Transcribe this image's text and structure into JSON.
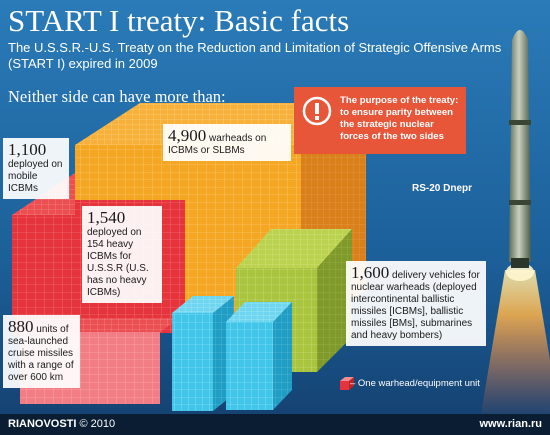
{
  "header": {
    "title": "START I treaty: Basic facts",
    "subtitle": "The U.S.S.R.-U.S. Treaty on the Reduction and Limitation of Strategic Offensive Arms (START I) expired in 2009",
    "lead": "Neither side can have more than:"
  },
  "callouts": {
    "mobile_icbms": {
      "value": "1,100",
      "text": "deployed on mobile ICBMs"
    },
    "warheads": {
      "value": "4,900",
      "text": "warheads on ICBMs or SLBMs"
    },
    "heavy_icbms": {
      "value": "1,540",
      "text": "deployed on 154 heavy ICBMs for U.S.S.R (U.S. has no heavy ICBMs)"
    },
    "delivery_vehicles": {
      "value": "1,600",
      "text": "delivery vehicles for nuclear warheads (deployed intercontinental ballistic missiles [ICBMs], ballistic missiles [BMs], submarines and heavy bombers)"
    },
    "cruise_missiles": {
      "value": "880",
      "text": "units of sea-launched cruise missiles with a range of over 600 km"
    }
  },
  "purpose": {
    "icon": "exclamation-icon",
    "text": "The purpose of the treaty: to ensure parity between the strategic nuclear forces of the two sides"
  },
  "rocket_label": "RS-20 Dnepr",
  "legend": {
    "icon": "red-cube-icon",
    "text": "– One warhead/equipment unit"
  },
  "footer": {
    "agency": "RIANOVOSTI",
    "copyright": "© 2010",
    "site": "www.rian.ru"
  },
  "colors": {
    "background": "#1f6ea8",
    "orange_block": "#f39a1d",
    "red_block": "#e7343a",
    "pink_block": "#f37a82",
    "green_block": "#a7c23f",
    "cyan_block": "#3fc6ea",
    "purpose_box": "#e8563a",
    "footer": "#0a1d33"
  }
}
